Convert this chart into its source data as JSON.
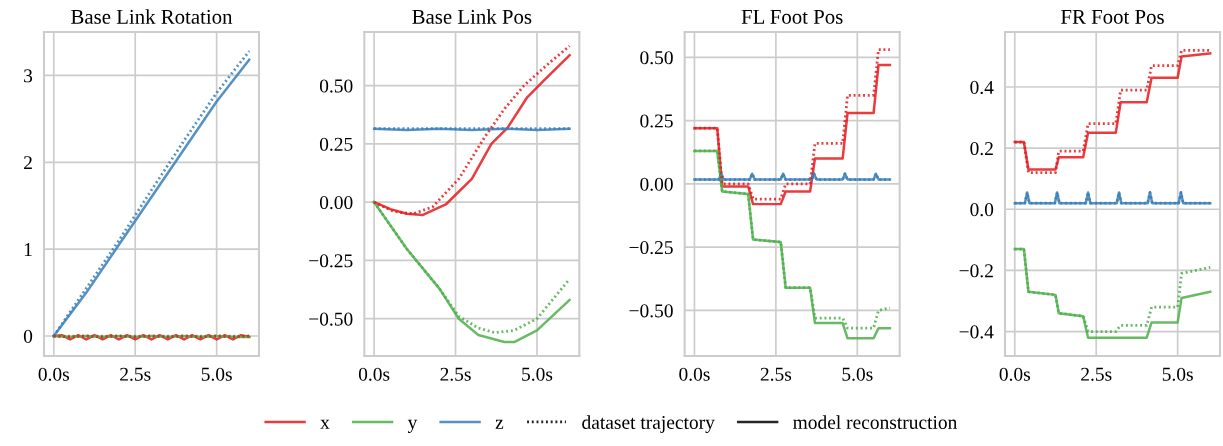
{
  "chart_data": [
    {
      "type": "line",
      "title": "Base Link Rotation",
      "xlim": [
        -0.3,
        6.3
      ],
      "ylim": [
        -0.23,
        3.5
      ],
      "xticks": [
        {
          "value": 0,
          "label": "0.0s"
        },
        {
          "value": 2.5,
          "label": "2.5s"
        },
        {
          "value": 5,
          "label": "5.0s"
        }
      ],
      "yticks": [
        0,
        1,
        2,
        3
      ],
      "grid": true,
      "legend": "bottom",
      "series": [
        {
          "name": "x",
          "color": "#e41a1c",
          "line_style": "solid",
          "x": [
            0,
            0.25,
            0.5,
            0.75,
            1,
            1.25,
            1.5,
            1.75,
            2,
            2.25,
            2.5,
            2.75,
            3,
            3.25,
            3.5,
            3.75,
            4,
            4.25,
            4.5,
            4.75,
            5,
            5.25,
            5.5,
            5.75,
            6
          ],
          "values": [
            0,
            0.01,
            -0.04,
            0.01,
            -0.04,
            0.01,
            -0.04,
            0.01,
            -0.04,
            0.01,
            -0.04,
            0.01,
            -0.04,
            0.01,
            -0.04,
            0.01,
            -0.04,
            0.01,
            -0.04,
            0.01,
            -0.04,
            0.01,
            -0.04,
            0.01,
            -0.01
          ]
        },
        {
          "color": "#e41a1c",
          "line_style": "dotted",
          "x": [
            0,
            0.5,
            1,
            1.5,
            2,
            2.5,
            3,
            3.5,
            4,
            4.5,
            5,
            5.5,
            6
          ],
          "values": [
            0,
            -0.01,
            0,
            -0.01,
            0,
            -0.01,
            0,
            -0.01,
            0,
            -0.01,
            0,
            -0.01,
            0
          ]
        },
        {
          "name": "y",
          "color": "#4daf4a",
          "line_style": "solid",
          "x": [
            0,
            0.5,
            1,
            1.5,
            2,
            2.5,
            3,
            3.5,
            4,
            4.5,
            5,
            5.5,
            6
          ],
          "values": [
            0,
            -0.01,
            0,
            -0.01,
            0,
            -0.01,
            0,
            -0.01,
            0,
            -0.01,
            0,
            -0.01,
            -0.01
          ]
        },
        {
          "color": "#4daf4a",
          "line_style": "dotted",
          "x": [
            0,
            1,
            2,
            3,
            4,
            5,
            6
          ],
          "values": [
            0,
            0,
            0,
            0,
            0,
            0,
            0
          ]
        },
        {
          "name": "z",
          "color": "#377eb8",
          "line_style": "solid",
          "x": [
            0,
            1,
            2,
            3,
            4,
            5,
            6
          ],
          "values": [
            0,
            0.5,
            1.05,
            1.6,
            2.15,
            2.7,
            3.18
          ]
        },
        {
          "color": "#377eb8",
          "line_style": "dotted",
          "x": [
            0,
            1,
            2,
            3,
            4,
            5,
            6
          ],
          "values": [
            0,
            0.55,
            1.1,
            1.68,
            2.25,
            2.8,
            3.28
          ]
        },
        {
          "name": "dataset trajectory",
          "color": "#000000",
          "line_style": "dotted"
        },
        {
          "name": "model reconstruction",
          "color": "#000000",
          "line_style": "solid"
        }
      ]
    },
    {
      "type": "line",
      "title": "Base Link Pos",
      "xlim": [
        -0.3,
        6.3
      ],
      "ylim": [
        -0.66,
        0.73
      ],
      "xticks": [
        {
          "value": 0,
          "label": "0.0s"
        },
        {
          "value": 2.5,
          "label": "2.5s"
        },
        {
          "value": 5,
          "label": "5.0s"
        }
      ],
      "yticks": [
        {
          "value": -0.5,
          "label": "−0.50"
        },
        {
          "value": -0.25,
          "label": "−0.25"
        },
        {
          "value": 0,
          "label": "0.00"
        },
        {
          "value": 0.25,
          "label": "0.25"
        },
        {
          "value": 0.5,
          "label": "0.50"
        }
      ],
      "grid": true,
      "series": [
        {
          "color": "#e41a1c",
          "line_style": "solid",
          "x": [
            0,
            0.5,
            1,
            1.5,
            2.2,
            3,
            3.6,
            4.1,
            4.7,
            5.2,
            6
          ],
          "values": [
            0,
            -0.03,
            -0.05,
            -0.055,
            -0.01,
            0.1,
            0.25,
            0.32,
            0.45,
            0.52,
            0.63
          ]
        },
        {
          "color": "#e41a1c",
          "line_style": "dotted",
          "x": [
            0,
            0.6,
            1.2,
            1.8,
            2.6,
            3.4,
            4,
            4.6,
            5.4,
            6
          ],
          "values": [
            0,
            -0.04,
            -0.05,
            -0.02,
            0.1,
            0.28,
            0.4,
            0.5,
            0.6,
            0.67
          ]
        },
        {
          "color": "#4daf4a",
          "line_style": "solid",
          "x": [
            0,
            1,
            2,
            2.6,
            3.2,
            4,
            4.3,
            5,
            6
          ],
          "values": [
            0,
            -0.2,
            -0.37,
            -0.5,
            -0.57,
            -0.6,
            -0.6,
            -0.55,
            -0.42
          ]
        },
        {
          "color": "#4daf4a",
          "line_style": "dotted",
          "x": [
            0,
            1,
            2,
            2.6,
            3.2,
            3.7,
            4.3,
            5,
            6
          ],
          "values": [
            0,
            -0.2,
            -0.37,
            -0.49,
            -0.54,
            -0.56,
            -0.55,
            -0.5,
            -0.33
          ]
        },
        {
          "color": "#377eb8",
          "line_style": "solid",
          "x": [
            0,
            1,
            2,
            3,
            4,
            5,
            6
          ],
          "values": [
            0.315,
            0.31,
            0.315,
            0.31,
            0.315,
            0.31,
            0.315
          ]
        },
        {
          "color": "#377eb8",
          "line_style": "dotted",
          "x": [
            0,
            1,
            2,
            3,
            4,
            5,
            6
          ],
          "values": [
            0.315,
            0.315,
            0.315,
            0.315,
            0.315,
            0.315,
            0.315
          ]
        }
      ]
    },
    {
      "type": "line",
      "title": "FL Foot Pos",
      "xlim": [
        -0.3,
        6.3
      ],
      "ylim": [
        -0.68,
        0.6
      ],
      "xticks": [
        {
          "value": 0,
          "label": "0.0s"
        },
        {
          "value": 2.5,
          "label": "2.5s"
        },
        {
          "value": 5,
          "label": "5.0s"
        }
      ],
      "yticks": [
        {
          "value": -0.5,
          "label": "−0.50"
        },
        {
          "value": -0.25,
          "label": "−0.25"
        },
        {
          "value": 0,
          "label": "0.00"
        },
        {
          "value": 0.25,
          "label": "0.25"
        },
        {
          "value": 0.5,
          "label": "0.50"
        }
      ],
      "grid": true,
      "series": [
        {
          "color": "#e41a1c",
          "line_style": "solid",
          "x": [
            0,
            0.7,
            0.85,
            1.65,
            1.8,
            2.65,
            2.8,
            3.55,
            3.7,
            4.55,
            4.7,
            5.5,
            5.65,
            6
          ],
          "values": [
            0.22,
            0.22,
            -0.01,
            -0.01,
            -0.08,
            -0.08,
            -0.03,
            -0.03,
            0.1,
            0.1,
            0.28,
            0.28,
            0.47,
            0.47
          ]
        },
        {
          "color": "#e41a1c",
          "line_style": "dotted",
          "x": [
            0,
            0.7,
            0.85,
            1.65,
            1.8,
            2.65,
            2.8,
            3.55,
            3.7,
            4.55,
            4.7,
            5.5,
            5.65,
            6
          ],
          "values": [
            0.22,
            0.22,
            0,
            0,
            -0.06,
            -0.06,
            0,
            0,
            0.16,
            0.16,
            0.35,
            0.35,
            0.53,
            0.53
          ]
        },
        {
          "color": "#4daf4a",
          "line_style": "solid",
          "x": [
            0,
            0.7,
            0.85,
            1.65,
            1.8,
            2.65,
            2.8,
            3.55,
            3.7,
            4.55,
            4.7,
            5.5,
            5.65,
            6
          ],
          "values": [
            0.13,
            0.13,
            -0.03,
            -0.04,
            -0.22,
            -0.23,
            -0.41,
            -0.41,
            -0.55,
            -0.55,
            -0.61,
            -0.61,
            -0.57,
            -0.57
          ]
        },
        {
          "color": "#4daf4a",
          "line_style": "dotted",
          "x": [
            0,
            0.7,
            0.85,
            1.65,
            1.8,
            2.65,
            2.8,
            3.55,
            3.7,
            4.55,
            4.7,
            5.5,
            5.65,
            6
          ],
          "values": [
            0.13,
            0.13,
            -0.03,
            -0.04,
            -0.22,
            -0.23,
            -0.41,
            -0.41,
            -0.53,
            -0.53,
            -0.57,
            -0.57,
            -0.5,
            -0.49
          ]
        },
        {
          "color": "#377eb8",
          "line_style": "solid",
          "x": [
            0,
            0.75,
            0.82,
            0.9,
            1.7,
            1.77,
            1.85,
            2.65,
            2.72,
            2.8,
            3.6,
            3.67,
            3.75,
            4.55,
            4.62,
            4.7,
            5.5,
            5.57,
            5.65,
            6
          ],
          "values": [
            0.017,
            0.017,
            0.04,
            0.017,
            0.017,
            0.04,
            0.017,
            0.017,
            0.04,
            0.017,
            0.017,
            0.04,
            0.017,
            0.017,
            0.04,
            0.017,
            0.017,
            0.04,
            0.017,
            0.017
          ]
        },
        {
          "color": "#377eb8",
          "line_style": "dotted",
          "x": [
            0,
            0.75,
            0.82,
            0.9,
            1.7,
            1.77,
            1.85,
            2.65,
            2.72,
            2.8,
            3.6,
            3.67,
            3.75,
            4.55,
            4.62,
            4.7,
            5.5,
            5.57,
            5.65,
            6
          ],
          "values": [
            0.017,
            0.017,
            0.04,
            0.017,
            0.017,
            0.04,
            0.017,
            0.017,
            0.04,
            0.017,
            0.017,
            0.04,
            0.017,
            0.017,
            0.04,
            0.017,
            0.017,
            0.04,
            0.017,
            0.017
          ]
        }
      ]
    },
    {
      "type": "line",
      "title": "FR Foot Pos",
      "xlim": [
        -0.3,
        6.3
      ],
      "ylim": [
        -0.48,
        0.58
      ],
      "xticks": [
        {
          "value": 0,
          "label": "0.0s"
        },
        {
          "value": 2.5,
          "label": "2.5s"
        },
        {
          "value": 5,
          "label": "5.0s"
        }
      ],
      "yticks": [
        {
          "value": -0.4,
          "label": "−0.4"
        },
        {
          "value": -0.2,
          "label": "−0.2"
        },
        {
          "value": 0,
          "label": "0.0"
        },
        {
          "value": 0.2,
          "label": "0.2"
        },
        {
          "value": 0.4,
          "label": "0.4"
        }
      ],
      "grid": true,
      "series": [
        {
          "color": "#e41a1c",
          "line_style": "solid",
          "x": [
            0,
            0.28,
            0.42,
            1.25,
            1.35,
            2.1,
            2.25,
            3.1,
            3.25,
            4.05,
            4.2,
            5,
            5.12,
            6
          ],
          "values": [
            0.22,
            0.22,
            0.13,
            0.13,
            0.17,
            0.17,
            0.25,
            0.25,
            0.35,
            0.35,
            0.43,
            0.43,
            0.5,
            0.51
          ]
        },
        {
          "color": "#e41a1c",
          "line_style": "dotted",
          "x": [
            0,
            0.28,
            0.42,
            1.25,
            1.35,
            2.1,
            2.25,
            3.1,
            3.25,
            4.05,
            4.2,
            5,
            5.12,
            6
          ],
          "values": [
            0.22,
            0.22,
            0.12,
            0.12,
            0.19,
            0.19,
            0.28,
            0.28,
            0.39,
            0.39,
            0.47,
            0.47,
            0.52,
            0.52
          ]
        },
        {
          "color": "#4daf4a",
          "line_style": "solid",
          "x": [
            0,
            0.28,
            0.42,
            1.25,
            1.35,
            2.1,
            2.25,
            3.1,
            3.25,
            4.05,
            4.2,
            5,
            5.12,
            6
          ],
          "values": [
            -0.13,
            -0.13,
            -0.27,
            -0.28,
            -0.34,
            -0.35,
            -0.42,
            -0.42,
            -0.42,
            -0.42,
            -0.37,
            -0.37,
            -0.29,
            -0.27
          ]
        },
        {
          "color": "#4daf4a",
          "line_style": "dotted",
          "x": [
            0,
            0.28,
            0.42,
            1.25,
            1.35,
            2.1,
            2.25,
            3.1,
            3.25,
            4.05,
            4.2,
            5,
            5.12,
            6
          ],
          "values": [
            -0.13,
            -0.13,
            -0.27,
            -0.28,
            -0.34,
            -0.35,
            -0.4,
            -0.4,
            -0.38,
            -0.38,
            -0.32,
            -0.32,
            -0.21,
            -0.19
          ]
        },
        {
          "color": "#377eb8",
          "line_style": "solid",
          "x": [
            0,
            0.31,
            0.38,
            0.45,
            1.23,
            1.3,
            1.37,
            2.18,
            2.25,
            2.32,
            3.13,
            3.2,
            3.27,
            4.08,
            4.15,
            4.22,
            5.03,
            5.1,
            5.17,
            6
          ],
          "values": [
            0.02,
            0.02,
            0.055,
            0.02,
            0.02,
            0.055,
            0.02,
            0.02,
            0.055,
            0.02,
            0.02,
            0.055,
            0.02,
            0.02,
            0.055,
            0.02,
            0.02,
            0.055,
            0.02,
            0.02
          ]
        },
        {
          "color": "#377eb8",
          "line_style": "dotted",
          "x": [
            0,
            0.31,
            0.38,
            0.45,
            1.23,
            1.3,
            1.37,
            2.18,
            2.25,
            2.32,
            3.13,
            3.2,
            3.27,
            4.08,
            4.15,
            4.22,
            5.03,
            5.1,
            5.17,
            6
          ],
          "values": [
            0.02,
            0.02,
            0.055,
            0.02,
            0.02,
            0.055,
            0.02,
            0.02,
            0.055,
            0.02,
            0.02,
            0.055,
            0.02,
            0.02,
            0.055,
            0.02,
            0.02,
            0.055,
            0.02,
            0.02
          ]
        }
      ]
    }
  ]
}
